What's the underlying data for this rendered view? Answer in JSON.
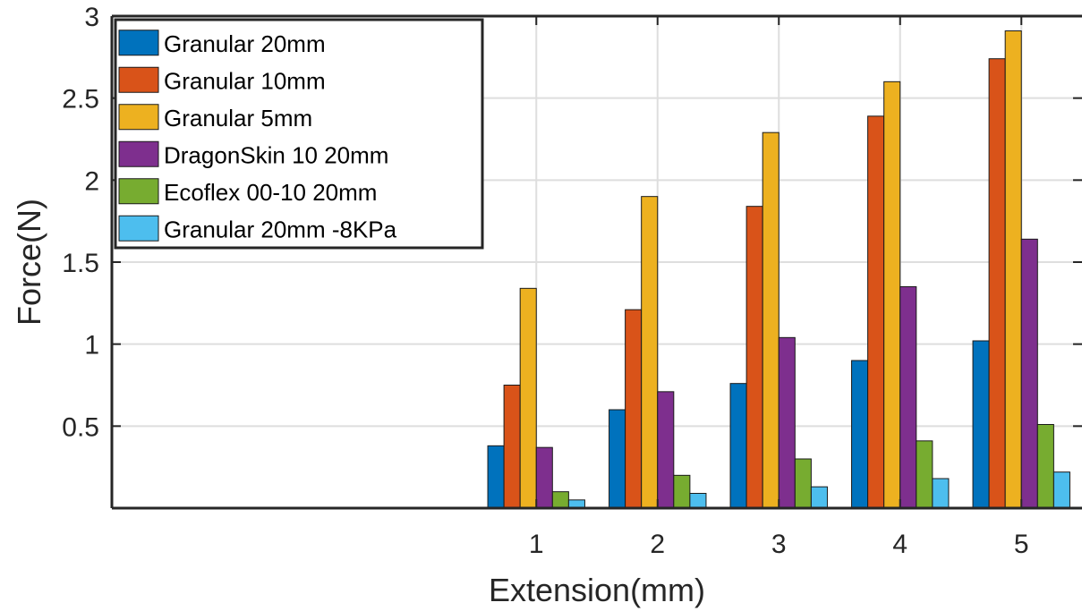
{
  "chart_data": {
    "type": "bar",
    "categories": [
      "1",
      "2",
      "3",
      "4",
      "5"
    ],
    "x_range": [
      -2.5,
      5.5
    ],
    "ylim": [
      0,
      3
    ],
    "yticks": [
      0.5,
      1,
      1.5,
      2,
      2.5,
      3
    ],
    "ytick_labels": [
      "0.5",
      "1",
      "1.5",
      "2",
      "2.5",
      "3"
    ],
    "xlabel": "Extension(mm)",
    "ylabel": "Force(N)",
    "grid": true,
    "legend_position": "top-left",
    "series": [
      {
        "name": "Granular 20mm",
        "color": "#0072BD",
        "values": [
          0.38,
          0.6,
          0.76,
          0.9,
          1.02
        ]
      },
      {
        "name": "Granular 10mm",
        "color": "#D95319",
        "values": [
          0.75,
          1.21,
          1.84,
          2.39,
          2.74
        ]
      },
      {
        "name": "Granular 5mm",
        "color": "#EDB120",
        "values": [
          1.34,
          1.9,
          2.29,
          2.6,
          2.91
        ]
      },
      {
        "name": "DragonSkin 10 20mm",
        "color": "#7E2F8E",
        "values": [
          0.37,
          0.71,
          1.04,
          1.35,
          1.64
        ]
      },
      {
        "name": "Ecoflex 00-10 20mm",
        "color": "#77AC30",
        "values": [
          0.1,
          0.2,
          0.3,
          0.41,
          0.51
        ]
      },
      {
        "name": "Granular 20mm -8KPa",
        "color": "#4DBEEE",
        "values": [
          0.05,
          0.09,
          0.13,
          0.18,
          0.22
        ]
      }
    ]
  }
}
